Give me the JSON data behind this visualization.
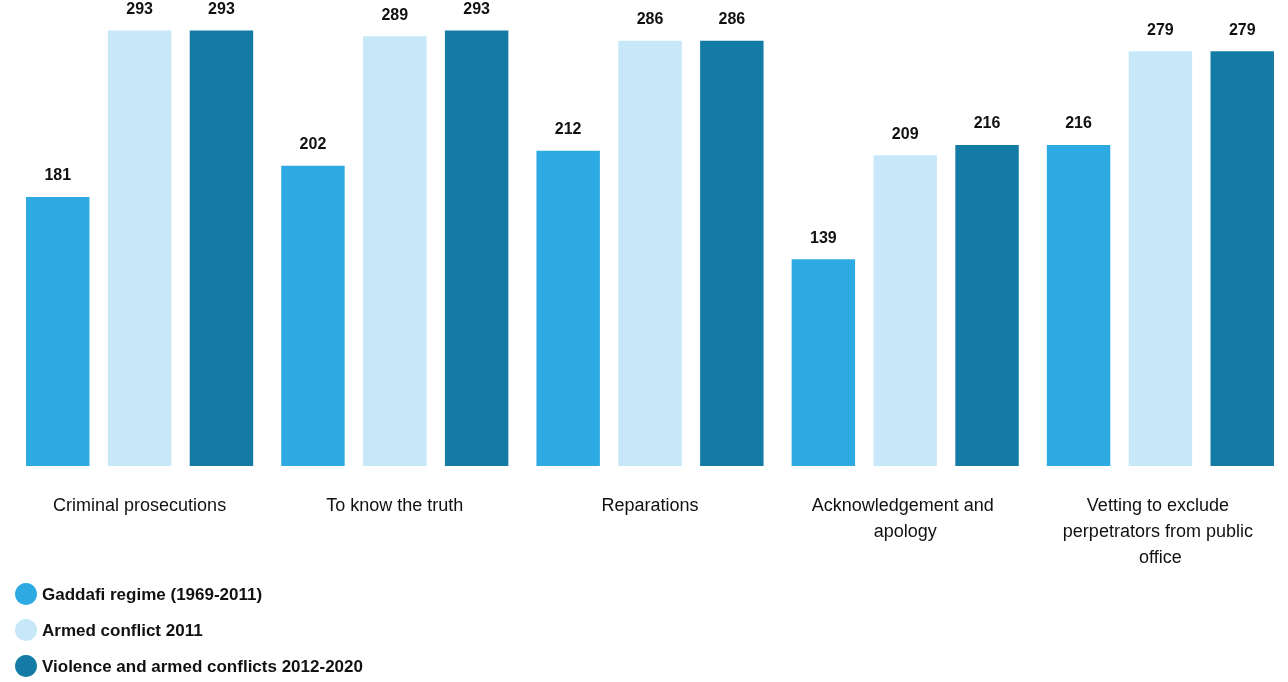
{
  "chart_data": {
    "type": "bar",
    "categories": [
      "Criminal prosecutions",
      "To know the truth",
      "Reparations",
      "Acknowledgement and apology",
      "Vetting to exclude perpetrators from public office"
    ],
    "series": [
      {
        "name": "Gaddafi regime (1969-2011)",
        "color": "#2eaae2",
        "values": [
          181,
          202,
          212,
          139,
          216
        ]
      },
      {
        "name": "Armed conflict 2011",
        "color": "#c7e8f8",
        "values": [
          293,
          289,
          286,
          209,
          279
        ]
      },
      {
        "name": "Violence and armed conflicts 2012-2020",
        "color": "#147ba4",
        "values": [
          293,
          293,
          286,
          216,
          279
        ]
      }
    ],
    "data_labels": true,
    "legend": "bottom left"
  }
}
